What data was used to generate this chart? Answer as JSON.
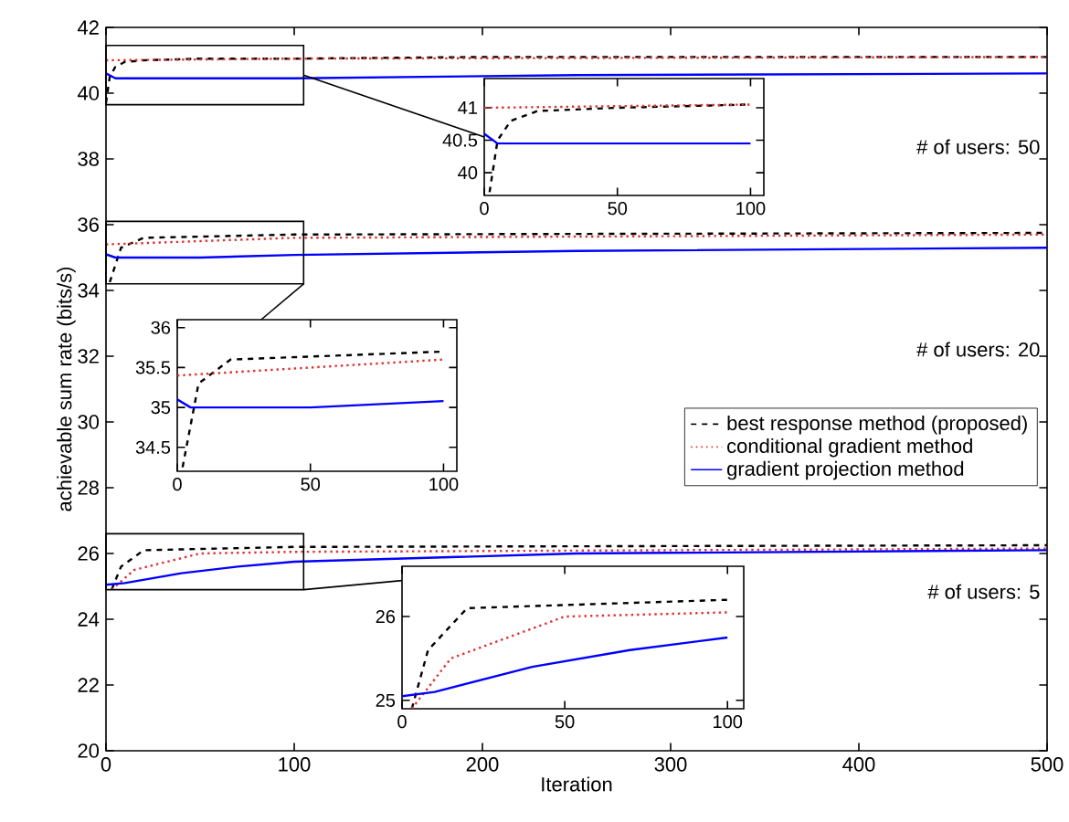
{
  "chart_data": [
    {
      "type": "line",
      "xlabel": "Iteration",
      "ylabel": "achievable sum rate (bits/s)",
      "xlim": [
        0,
        500
      ],
      "ylim": [
        20,
        42
      ],
      "xticks": [
        0,
        100,
        200,
        300,
        400,
        500
      ],
      "yticks": [
        20,
        22,
        24,
        26,
        28,
        30,
        32,
        34,
        36,
        38,
        40,
        42
      ],
      "legend": "right",
      "annotations": [
        "# of users: 50",
        "# of users: 20",
        "# of users: 5"
      ],
      "series": [
        {
          "name": "best response method (proposed)",
          "color": "#000000",
          "line_style": "dashed",
          "x": [
            0,
            2,
            5,
            10,
            20,
            50,
            100,
            200,
            300,
            400,
            500
          ],
          "values": [
            39.7,
            40.5,
            40.8,
            40.95,
            41.0,
            41.05,
            41.05,
            41.1,
            41.1,
            41.1,
            41.1
          ]
        },
        {
          "name": "conditional gradient method",
          "color": "#e03030",
          "line_style": "dotted",
          "x": [
            0,
            100,
            500
          ],
          "values": [
            41.0,
            41.05,
            41.1
          ]
        },
        {
          "name": "gradient projection method",
          "color": "#0000ff",
          "line_style": "solid",
          "x": [
            0,
            5,
            100,
            250,
            500
          ],
          "values": [
            40.6,
            40.45,
            40.45,
            40.55,
            40.6
          ]
        },
        {
          "color": "#000000",
          "line_style": "dashed",
          "x": [
            2,
            8,
            20,
            100,
            500
          ],
          "values": [
            34.25,
            35.3,
            35.6,
            35.7,
            35.75
          ]
        },
        {
          "color": "#e03030",
          "line_style": "dotted",
          "x": [
            0,
            100,
            500
          ],
          "values": [
            35.4,
            35.6,
            35.7
          ]
        },
        {
          "color": "#0000ff",
          "line_style": "solid",
          "x": [
            0,
            5,
            50,
            100,
            250,
            500
          ],
          "values": [
            35.1,
            35.0,
            35.0,
            35.08,
            35.2,
            35.3
          ]
        },
        {
          "color": "#000000",
          "line_style": "dashed",
          "x": [
            3,
            8,
            20,
            100,
            500
          ],
          "values": [
            24.9,
            25.6,
            26.1,
            26.2,
            26.25
          ]
        },
        {
          "color": "#e03030",
          "line_style": "dotted",
          "x": [
            3,
            15,
            50,
            100,
            500
          ],
          "values": [
            24.9,
            25.5,
            26.0,
            26.05,
            26.15
          ]
        },
        {
          "color": "#0000ff",
          "line_style": "solid",
          "x": [
            0,
            10,
            40,
            70,
            100,
            250,
            500
          ],
          "values": [
            25.05,
            25.1,
            25.4,
            25.6,
            25.75,
            26.0,
            26.1
          ]
        }
      ]
    },
    {
      "type": "line",
      "xlim": [
        0,
        105
      ],
      "ylim": [
        39.65,
        41.45
      ],
      "xticks": [
        0,
        50,
        100
      ],
      "yticks": [
        40,
        40.5,
        41
      ],
      "series": [
        {
          "color": "#000000",
          "line_style": "dashed",
          "x": [
            2,
            5,
            10,
            20,
            50,
            100
          ],
          "values": [
            39.7,
            40.5,
            40.8,
            40.95,
            41.0,
            41.05
          ]
        },
        {
          "color": "#e03030",
          "line_style": "dotted",
          "x": [
            0,
            100
          ],
          "values": [
            41.0,
            41.05
          ]
        },
        {
          "color": "#0000ff",
          "line_style": "solid",
          "x": [
            0,
            5,
            100
          ],
          "values": [
            40.6,
            40.45,
            40.45
          ]
        }
      ]
    },
    {
      "type": "line",
      "xlim": [
        0,
        105
      ],
      "ylim": [
        34.2,
        36.1
      ],
      "xticks": [
        0,
        50,
        100
      ],
      "yticks": [
        34.5,
        35,
        35.5,
        36
      ],
      "series": [
        {
          "color": "#000000",
          "line_style": "dashed",
          "x": [
            2,
            8,
            20,
            100
          ],
          "values": [
            34.25,
            35.3,
            35.6,
            35.7
          ]
        },
        {
          "color": "#e03030",
          "line_style": "dotted",
          "x": [
            0,
            100
          ],
          "values": [
            35.4,
            35.6
          ]
        },
        {
          "color": "#0000ff",
          "line_style": "solid",
          "x": [
            0,
            5,
            50,
            100
          ],
          "values": [
            35.1,
            35.0,
            35.0,
            35.08
          ]
        }
      ]
    },
    {
      "type": "line",
      "xlim": [
        0,
        105
      ],
      "ylim": [
        24.9,
        26.6
      ],
      "xticks": [
        0,
        50,
        100
      ],
      "yticks": [
        25,
        26
      ],
      "series": [
        {
          "color": "#000000",
          "line_style": "dashed",
          "x": [
            3,
            8,
            20,
            100
          ],
          "values": [
            24.9,
            25.6,
            26.1,
            26.2
          ]
        },
        {
          "color": "#e03030",
          "line_style": "dotted",
          "x": [
            3,
            15,
            50,
            100
          ],
          "values": [
            24.9,
            25.5,
            26.0,
            26.05
          ]
        },
        {
          "color": "#0000ff",
          "line_style": "solid",
          "x": [
            0,
            10,
            40,
            70,
            100
          ],
          "values": [
            25.05,
            25.1,
            25.4,
            25.6,
            25.75
          ]
        }
      ]
    }
  ]
}
